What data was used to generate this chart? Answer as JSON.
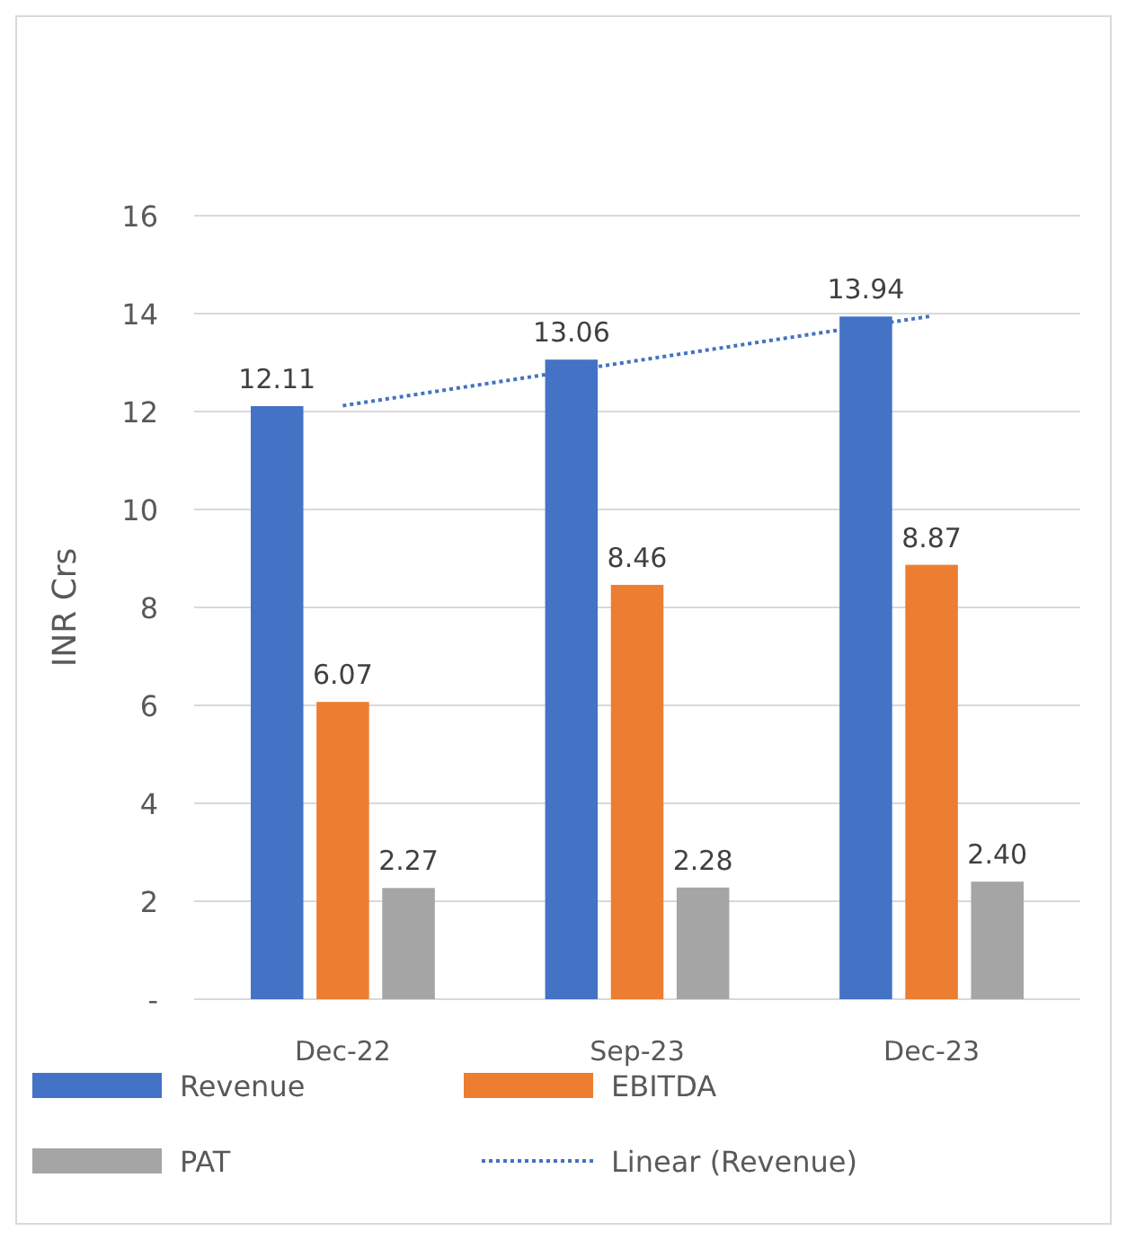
{
  "chart_data": {
    "type": "bar",
    "ylabel": "INR Crs",
    "categories": [
      "Dec-22",
      "Sep-23",
      "Dec-23"
    ],
    "series": [
      {
        "name": "Revenue",
        "color": "#4472c4",
        "values": [
          12.11,
          13.06,
          13.94
        ],
        "value_labels": [
          "12.11",
          "13.06",
          "13.94"
        ]
      },
      {
        "name": "EBITDA",
        "color": "#ed7d31",
        "values": [
          6.07,
          8.46,
          8.87
        ],
        "value_labels": [
          "6.07",
          "8.46",
          "8.87"
        ]
      },
      {
        "name": "PAT",
        "color": "#a5a5a5",
        "values": [
          2.27,
          2.28,
          2.4
        ],
        "value_labels": [
          "2.27",
          "2.28",
          "2.40"
        ]
      },
      {
        "name": "Linear (Revenue)",
        "type": "line",
        "color": "#4472c4",
        "values": [
          12.12,
          13.04,
          13.95
        ],
        "line_style": "dotted",
        "marker": "none"
      }
    ],
    "ylim": [
      0,
      16
    ],
    "yticks": [
      {
        "value": 0,
        "label": "-"
      },
      2,
      4,
      6,
      8,
      10,
      12,
      14,
      16
    ],
    "grid": "y",
    "legend": "bottom"
  }
}
